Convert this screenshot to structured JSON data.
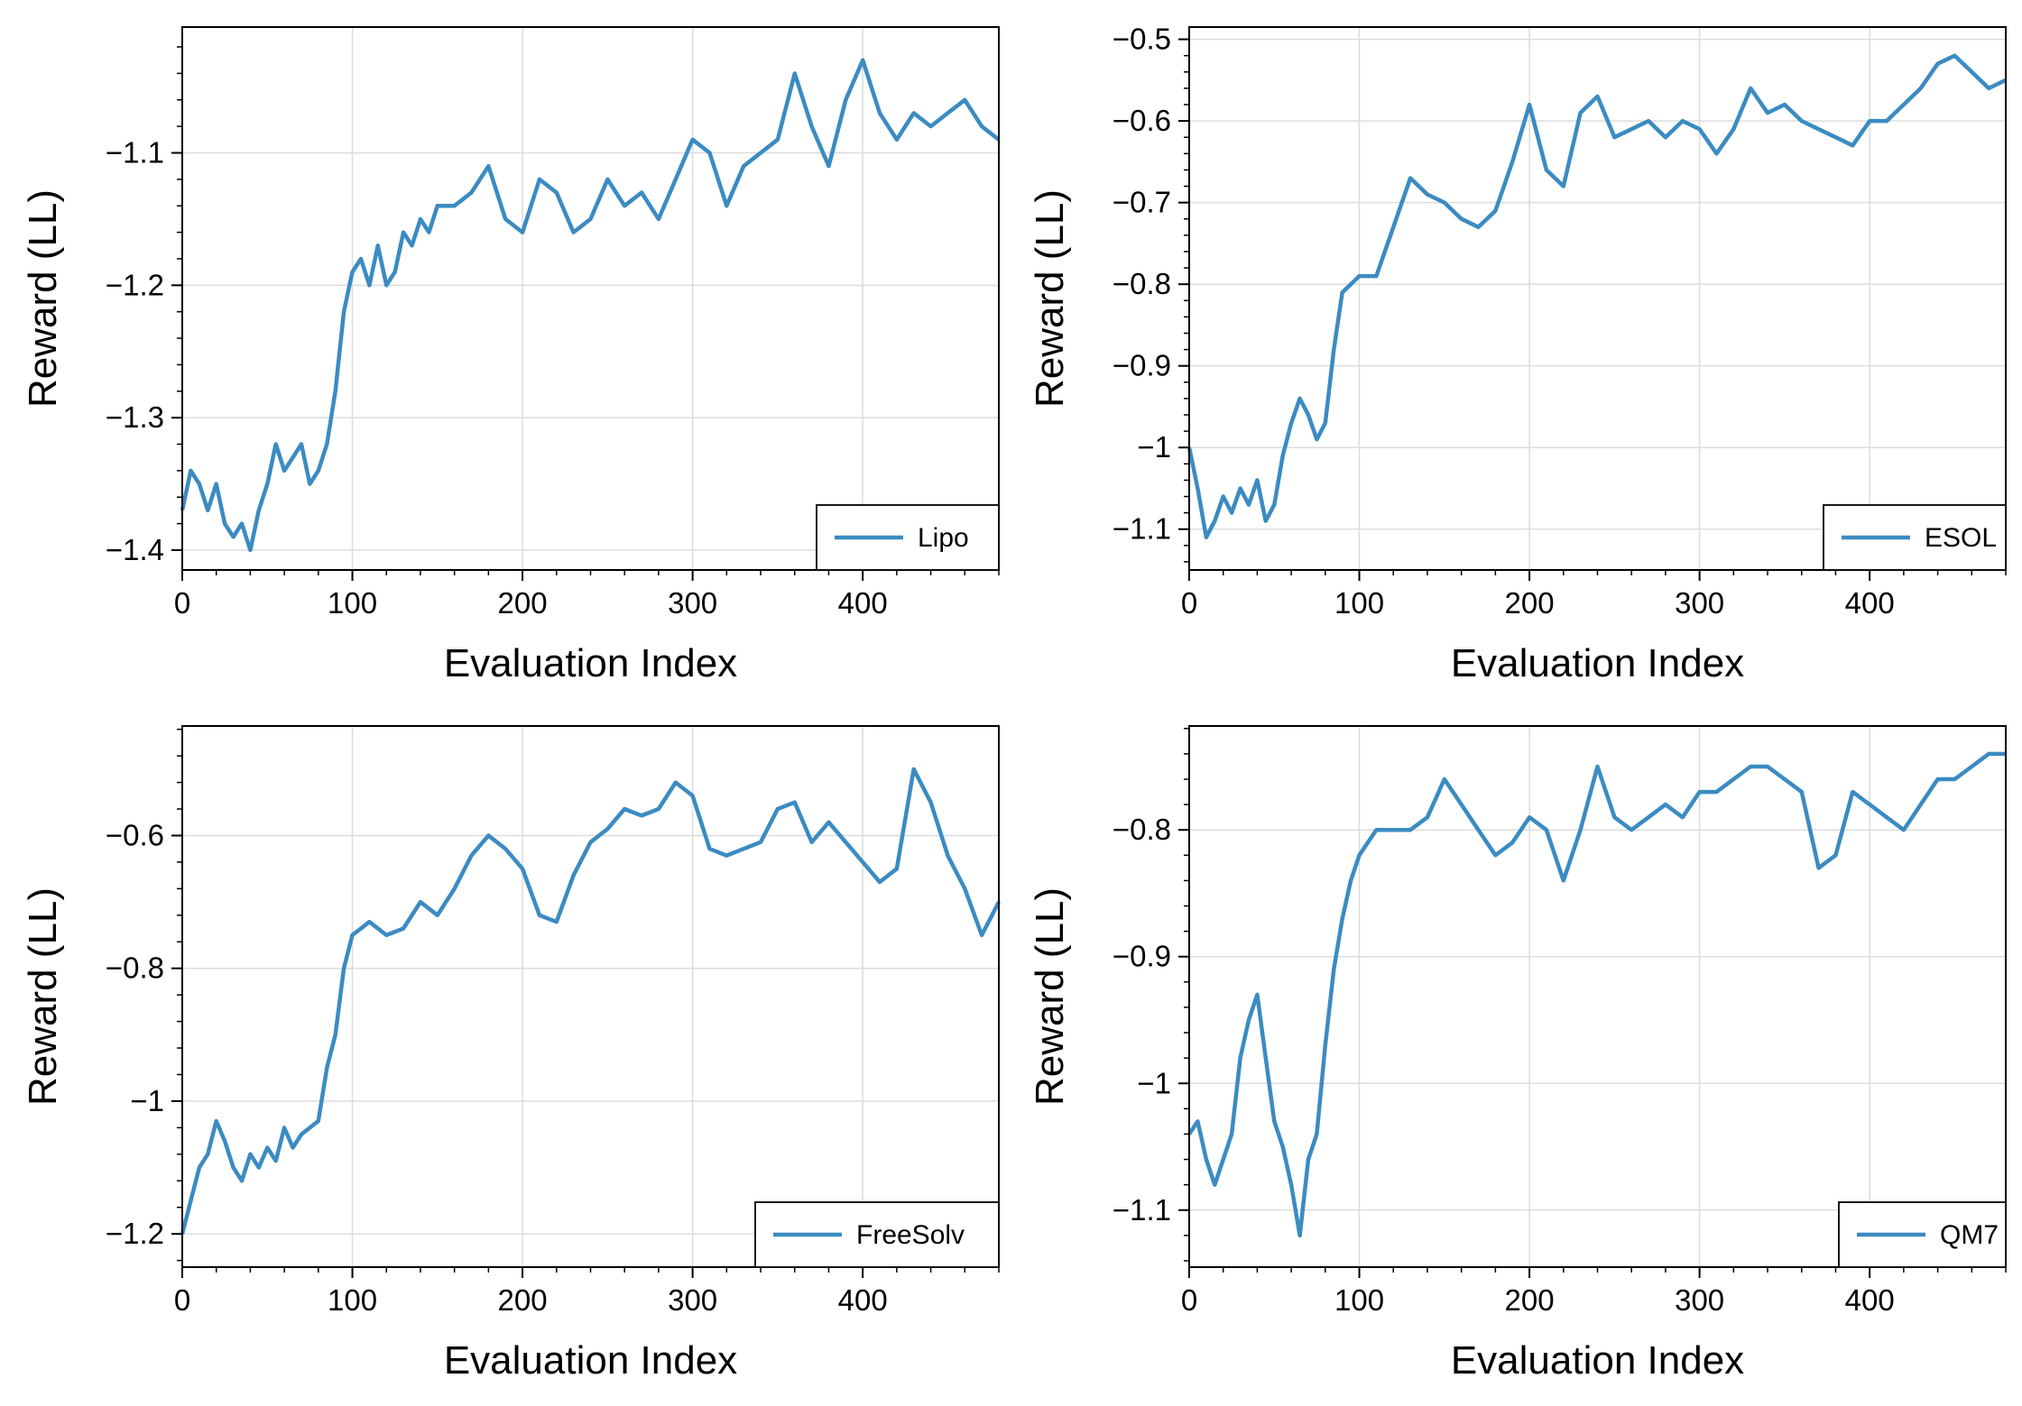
{
  "line_color": "#3b8bc2",
  "chart_data": [
    {
      "type": "line",
      "xlabel": "Evaluation Index",
      "ylabel": "Reward (LL)",
      "xlim": [
        0,
        480
      ],
      "ylim": [
        -1.415,
        -1.005
      ],
      "xticks": [
        0,
        100,
        200,
        300,
        400
      ],
      "yticks": [
        -1.4,
        -1.3,
        -1.2,
        -1.1
      ],
      "ytick_labels": [
        "−1.4",
        "−1.3",
        "−1.2",
        "−1.1"
      ],
      "grid": true,
      "legend_position": "lower-right",
      "series": [
        {
          "name": "Lipo",
          "x": [
            0,
            5,
            10,
            15,
            20,
            25,
            30,
            35,
            40,
            45,
            50,
            55,
            60,
            65,
            70,
            75,
            80,
            85,
            90,
            95,
            100,
            105,
            110,
            115,
            120,
            125,
            130,
            135,
            140,
            145,
            150,
            160,
            170,
            180,
            190,
            200,
            210,
            220,
            230,
            240,
            250,
            260,
            270,
            280,
            290,
            300,
            310,
            320,
            330,
            340,
            350,
            360,
            370,
            380,
            390,
            400,
            410,
            420,
            430,
            440,
            450,
            460,
            470,
            480
          ],
          "values": [
            -1.37,
            -1.34,
            -1.35,
            -1.37,
            -1.35,
            -1.38,
            -1.39,
            -1.38,
            -1.4,
            -1.37,
            -1.35,
            -1.32,
            -1.34,
            -1.33,
            -1.32,
            -1.35,
            -1.34,
            -1.32,
            -1.28,
            -1.22,
            -1.19,
            -1.18,
            -1.2,
            -1.17,
            -1.2,
            -1.19,
            -1.16,
            -1.17,
            -1.15,
            -1.16,
            -1.14,
            -1.14,
            -1.13,
            -1.11,
            -1.15,
            -1.16,
            -1.12,
            -1.13,
            -1.16,
            -1.15,
            -1.12,
            -1.14,
            -1.13,
            -1.15,
            -1.12,
            -1.09,
            -1.1,
            -1.14,
            -1.11,
            -1.1,
            -1.09,
            -1.04,
            -1.08,
            -1.11,
            -1.06,
            -1.03,
            -1.07,
            -1.09,
            -1.07,
            -1.08,
            -1.07,
            -1.06,
            -1.08,
            -1.09
          ]
        }
      ]
    },
    {
      "type": "line",
      "xlabel": "Evaluation Index",
      "ylabel": "Reward (LL)",
      "xlim": [
        0,
        480
      ],
      "ylim": [
        -1.15,
        -0.485
      ],
      "xticks": [
        0,
        100,
        200,
        300,
        400
      ],
      "yticks": [
        -1.1,
        -1,
        -0.9,
        -0.8,
        -0.7,
        -0.6,
        -0.5
      ],
      "ytick_labels": [
        "−1.1",
        "−1",
        "−0.9",
        "−0.8",
        "−0.7",
        "−0.6",
        "−0.5"
      ],
      "grid": true,
      "legend_position": "lower-right",
      "series": [
        {
          "name": "ESOL",
          "x": [
            0,
            5,
            10,
            15,
            20,
            25,
            30,
            35,
            40,
            45,
            50,
            55,
            60,
            65,
            70,
            75,
            80,
            85,
            90,
            95,
            100,
            110,
            120,
            130,
            140,
            150,
            160,
            170,
            180,
            190,
            200,
            210,
            220,
            230,
            240,
            250,
            260,
            270,
            280,
            290,
            300,
            310,
            320,
            330,
            340,
            350,
            360,
            370,
            380,
            390,
            400,
            410,
            420,
            430,
            440,
            450,
            460,
            470,
            480
          ],
          "values": [
            -1.0,
            -1.05,
            -1.11,
            -1.09,
            -1.06,
            -1.08,
            -1.05,
            -1.07,
            -1.04,
            -1.09,
            -1.07,
            -1.01,
            -0.97,
            -0.94,
            -0.96,
            -0.99,
            -0.97,
            -0.88,
            -0.81,
            -0.8,
            -0.79,
            -0.79,
            -0.73,
            -0.67,
            -0.69,
            -0.7,
            -0.72,
            -0.73,
            -0.71,
            -0.65,
            -0.58,
            -0.66,
            -0.68,
            -0.59,
            -0.57,
            -0.62,
            -0.61,
            -0.6,
            -0.62,
            -0.6,
            -0.61,
            -0.64,
            -0.61,
            -0.56,
            -0.59,
            -0.58,
            -0.6,
            -0.61,
            -0.62,
            -0.63,
            -0.6,
            -0.6,
            -0.58,
            -0.56,
            -0.53,
            -0.52,
            -0.54,
            -0.56,
            -0.55
          ]
        }
      ]
    },
    {
      "type": "line",
      "xlabel": "Evaluation Index",
      "ylabel": "Reward (LL)",
      "xlim": [
        0,
        480
      ],
      "ylim": [
        -1.25,
        -0.435
      ],
      "xticks": [
        0,
        100,
        200,
        300,
        400
      ],
      "yticks": [
        -1.2,
        -1,
        -0.8,
        -0.6
      ],
      "ytick_labels": [
        "−1.2",
        "−1",
        "−0.8",
        "−0.6"
      ],
      "grid": true,
      "legend_position": "lower-right",
      "series": [
        {
          "name": "FreeSolv",
          "x": [
            0,
            5,
            10,
            15,
            20,
            25,
            30,
            35,
            40,
            45,
            50,
            55,
            60,
            65,
            70,
            75,
            80,
            85,
            90,
            95,
            100,
            110,
            120,
            130,
            140,
            150,
            160,
            170,
            180,
            190,
            200,
            210,
            220,
            230,
            240,
            250,
            260,
            270,
            280,
            290,
            300,
            310,
            320,
            330,
            340,
            350,
            360,
            370,
            380,
            390,
            400,
            410,
            420,
            430,
            440,
            450,
            460,
            470,
            480
          ],
          "values": [
            -1.2,
            -1.15,
            -1.1,
            -1.08,
            -1.03,
            -1.06,
            -1.1,
            -1.12,
            -1.08,
            -1.1,
            -1.07,
            -1.09,
            -1.04,
            -1.07,
            -1.05,
            -1.04,
            -1.03,
            -0.95,
            -0.9,
            -0.8,
            -0.75,
            -0.73,
            -0.75,
            -0.74,
            -0.7,
            -0.72,
            -0.68,
            -0.63,
            -0.6,
            -0.62,
            -0.65,
            -0.72,
            -0.73,
            -0.66,
            -0.61,
            -0.59,
            -0.56,
            -0.57,
            -0.56,
            -0.52,
            -0.54,
            -0.62,
            -0.63,
            -0.62,
            -0.61,
            -0.56,
            -0.55,
            -0.61,
            -0.58,
            -0.61,
            -0.64,
            -0.67,
            -0.65,
            -0.5,
            -0.55,
            -0.63,
            -0.68,
            -0.75,
            -0.7
          ]
        }
      ]
    },
    {
      "type": "line",
      "xlabel": "Evaluation Index",
      "ylabel": "Reward (LL)",
      "xlim": [
        0,
        480
      ],
      "ylim": [
        -1.145,
        -0.718
      ],
      "xticks": [
        0,
        100,
        200,
        300,
        400
      ],
      "yticks": [
        -1.1,
        -1,
        -0.9,
        -0.8
      ],
      "ytick_labels": [
        "−1.1",
        "−1",
        "−0.9",
        "−0.8"
      ],
      "grid": true,
      "legend_position": "lower-right",
      "series": [
        {
          "name": "QM7",
          "x": [
            0,
            5,
            10,
            15,
            20,
            25,
            30,
            35,
            40,
            45,
            50,
            55,
            60,
            65,
            70,
            75,
            80,
            85,
            90,
            95,
            100,
            110,
            120,
            130,
            140,
            150,
            160,
            170,
            180,
            190,
            200,
            210,
            220,
            230,
            240,
            250,
            260,
            270,
            280,
            290,
            300,
            310,
            320,
            330,
            340,
            350,
            360,
            370,
            380,
            390,
            400,
            410,
            420,
            430,
            440,
            450,
            460,
            470,
            480
          ],
          "values": [
            -1.04,
            -1.03,
            -1.06,
            -1.08,
            -1.06,
            -1.04,
            -0.98,
            -0.95,
            -0.93,
            -0.98,
            -1.03,
            -1.05,
            -1.08,
            -1.12,
            -1.06,
            -1.04,
            -0.97,
            -0.91,
            -0.87,
            -0.84,
            -0.82,
            -0.8,
            -0.8,
            -0.8,
            -0.79,
            -0.76,
            -0.78,
            -0.8,
            -0.82,
            -0.81,
            -0.79,
            -0.8,
            -0.84,
            -0.8,
            -0.75,
            -0.79,
            -0.8,
            -0.79,
            -0.78,
            -0.79,
            -0.77,
            -0.77,
            -0.76,
            -0.75,
            -0.75,
            -0.76,
            -0.77,
            -0.83,
            -0.82,
            -0.77,
            -0.78,
            -0.79,
            -0.8,
            -0.78,
            -0.76,
            -0.76,
            -0.75,
            -0.74,
            -0.74
          ]
        }
      ]
    }
  ]
}
